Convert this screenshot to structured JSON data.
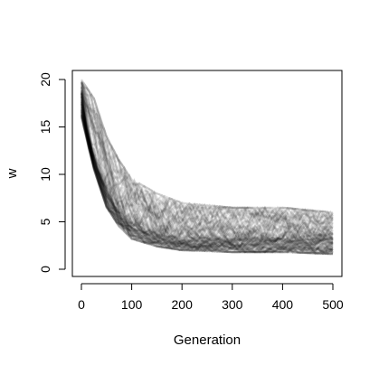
{
  "chart_data": {
    "type": "line",
    "title": "",
    "xlabel": "Generation",
    "ylabel": "w",
    "xlim": [
      0,
      500
    ],
    "ylim": [
      0,
      20
    ],
    "x_ticks": [
      "0",
      "100",
      "200",
      "300",
      "400",
      "500"
    ],
    "y_ticks": [
      "0",
      "5",
      "10",
      "15",
      "20"
    ],
    "grid": false,
    "legend": "none",
    "line_color": "#000000",
    "line_opacity": 0.035,
    "series_count": 120,
    "series": [
      {
        "values": [
          [
            0,
            18.5
          ],
          [
            10,
            15.2
          ],
          [
            20,
            12.8
          ],
          [
            30,
            11.0
          ],
          [
            40,
            9.6
          ],
          [
            50,
            8.4
          ],
          [
            60,
            7.4
          ],
          [
            70,
            6.6
          ],
          [
            80,
            6.0
          ],
          [
            90,
            5.5
          ],
          [
            100,
            5.0
          ],
          [
            125,
            4.3
          ],
          [
            150,
            3.9
          ],
          [
            175,
            3.6
          ],
          [
            200,
            3.5
          ],
          [
            250,
            3.4
          ],
          [
            300,
            3.3
          ],
          [
            350,
            3.3
          ],
          [
            400,
            3.3
          ],
          [
            450,
            3.3
          ],
          [
            500,
            3.3
          ]
        ]
      }
    ],
    "band_upper": [
      [
        0,
        20.0
      ],
      [
        25,
        18.0
      ],
      [
        50,
        14.0
      ],
      [
        75,
        11.5
      ],
      [
        100,
        9.5
      ],
      [
        150,
        8.0
      ],
      [
        200,
        7.0
      ],
      [
        300,
        6.5
      ],
      [
        400,
        6.5
      ],
      [
        500,
        6.0
      ]
    ],
    "band_lower": [
      [
        0,
        16.0
      ],
      [
        25,
        10.5
      ],
      [
        50,
        6.5
      ],
      [
        75,
        4.5
      ],
      [
        100,
        3.2
      ],
      [
        150,
        2.4
      ],
      [
        200,
        2.0
      ],
      [
        300,
        1.8
      ],
      [
        400,
        1.8
      ],
      [
        500,
        1.6
      ]
    ]
  }
}
